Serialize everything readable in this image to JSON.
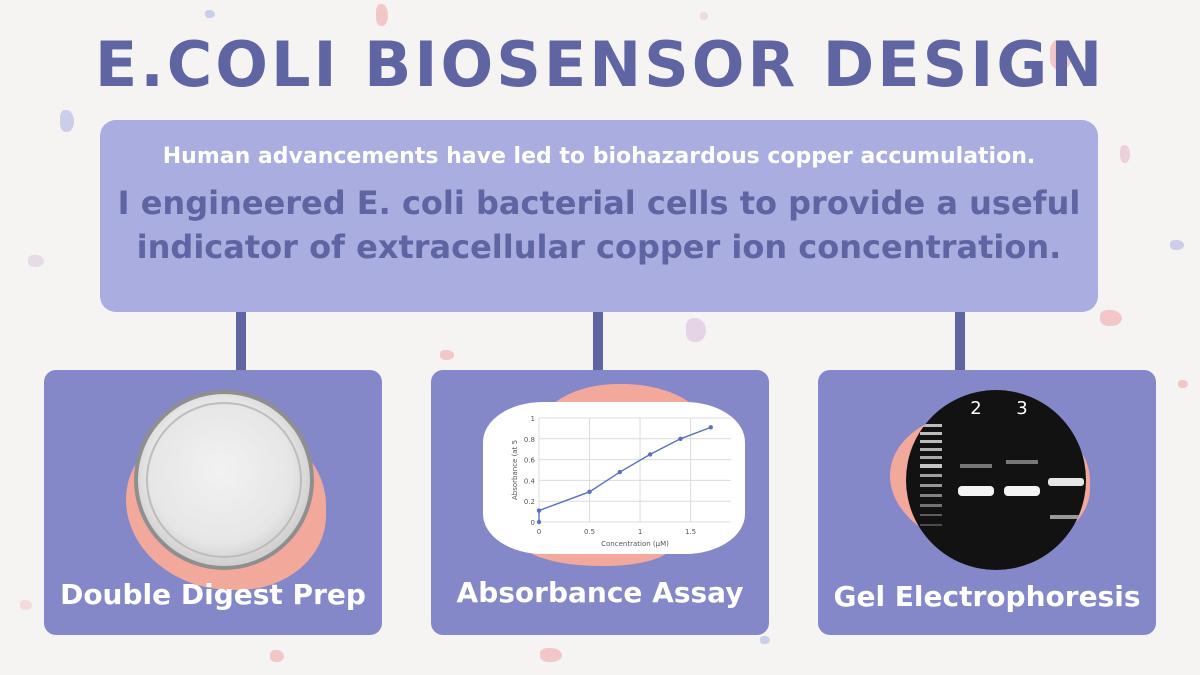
{
  "title": "E.COLI BIOSENSOR DESIGN",
  "summary": {
    "line1": "Human advancements have led to biohazardous copper accumulation.",
    "line2": "I engineered E. coli bacterial cells to provide a useful indicator of extracellular copper ion concentration."
  },
  "cards": [
    {
      "label": "Double Digest Prep",
      "image": "petri-dish-photo"
    },
    {
      "label": "Absorbance Assay",
      "image": "absorbance-line-plot"
    },
    {
      "label": "Gel Electrophoresis",
      "image": "gel-photo"
    }
  ],
  "colors": {
    "title": "#5f64a2",
    "summary_bg": "#a9addf",
    "card_bg": "#8488c8",
    "accent_blob": "#f2a99b",
    "plot_line": "#5a70c0"
  },
  "gel": {
    "lane_labels": [
      "2",
      "3"
    ]
  },
  "chart_data": {
    "type": "line",
    "xlabel": "Concentration (μM)",
    "ylabel": "Absorbance (at 5",
    "xlim": [
      0,
      1.9
    ],
    "ylim": [
      0,
      1
    ],
    "x_ticks": [
      "0",
      "0.5",
      "1",
      "1.5"
    ],
    "y_ticks": [
      "0",
      "0.2",
      "0.4",
      "0.6",
      "0.8",
      "1"
    ],
    "series": [
      {
        "x": [
          0,
          0,
          0.5,
          0.8,
          1.1,
          1.4,
          1.7
        ],
        "y": [
          0,
          0.11,
          0.29,
          0.48,
          0.65,
          0.8,
          0.91
        ]
      }
    ]
  }
}
